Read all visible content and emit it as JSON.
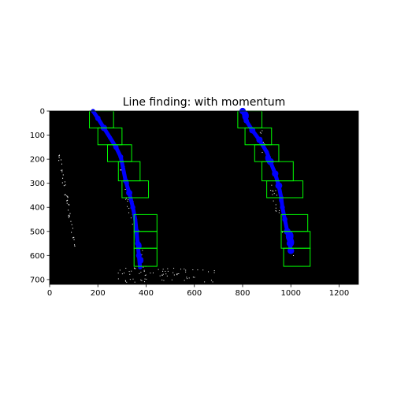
{
  "chart_data": {
    "type": "image",
    "title": "Line finding: with momentum",
    "xlim": [
      0,
      1280
    ],
    "ylim": [
      720,
      0
    ],
    "xticks": [
      0,
      200,
      400,
      600,
      800,
      1000,
      1200
    ],
    "yticks": [
      0,
      100,
      200,
      300,
      400,
      500,
      600,
      700
    ],
    "colors": {
      "background": "#000000",
      "lane_pixels": "#0000ff",
      "windows": "#00ff00",
      "noise": "#ffffff"
    },
    "windows_left": [
      {
        "x1": 165,
        "y1": 0,
        "x2": 265,
        "y2": 70
      },
      {
        "x1": 200,
        "y1": 70,
        "x2": 300,
        "y2": 140
      },
      {
        "x1": 240,
        "y1": 140,
        "x2": 340,
        "y2": 210
      },
      {
        "x1": 285,
        "y1": 210,
        "x2": 375,
        "y2": 290
      },
      {
        "x1": 300,
        "y1": 290,
        "x2": 410,
        "y2": 360
      },
      {
        "x1": 350,
        "y1": 430,
        "x2": 445,
        "y2": 500
      },
      {
        "x1": 350,
        "y1": 500,
        "x2": 445,
        "y2": 570
      },
      {
        "x1": 350,
        "y1": 570,
        "x2": 445,
        "y2": 645
      }
    ],
    "windows_right": [
      {
        "x1": 780,
        "y1": 0,
        "x2": 880,
        "y2": 70
      },
      {
        "x1": 810,
        "y1": 70,
        "x2": 920,
        "y2": 140
      },
      {
        "x1": 850,
        "y1": 140,
        "x2": 950,
        "y2": 210
      },
      {
        "x1": 880,
        "y1": 210,
        "x2": 1010,
        "y2": 290
      },
      {
        "x1": 900,
        "y1": 290,
        "x2": 1050,
        "y2": 360
      },
      {
        "x1": 960,
        "y1": 430,
        "x2": 1070,
        "y2": 500
      },
      {
        "x1": 960,
        "y1": 500,
        "x2": 1080,
        "y2": 570
      },
      {
        "x1": 970,
        "y1": 570,
        "x2": 1080,
        "y2": 645
      }
    ],
    "left_lane": [
      [
        180,
        0
      ],
      [
        200,
        30
      ],
      [
        225,
        70
      ],
      [
        250,
        110
      ],
      [
        275,
        150
      ],
      [
        295,
        190
      ],
      [
        305,
        240
      ],
      [
        315,
        290
      ],
      [
        330,
        340
      ],
      [
        345,
        400
      ],
      [
        355,
        450
      ],
      [
        360,
        500
      ],
      [
        365,
        550
      ],
      [
        370,
        600
      ],
      [
        375,
        650
      ]
    ],
    "right_lane": [
      [
        800,
        0
      ],
      [
        815,
        40
      ],
      [
        840,
        80
      ],
      [
        870,
        120
      ],
      [
        900,
        170
      ],
      [
        915,
        210
      ],
      [
        935,
        260
      ],
      [
        950,
        310
      ],
      [
        960,
        360
      ],
      [
        965,
        400
      ],
      [
        975,
        450
      ],
      [
        985,
        500
      ],
      [
        995,
        550
      ],
      [
        1000,
        580
      ]
    ]
  }
}
